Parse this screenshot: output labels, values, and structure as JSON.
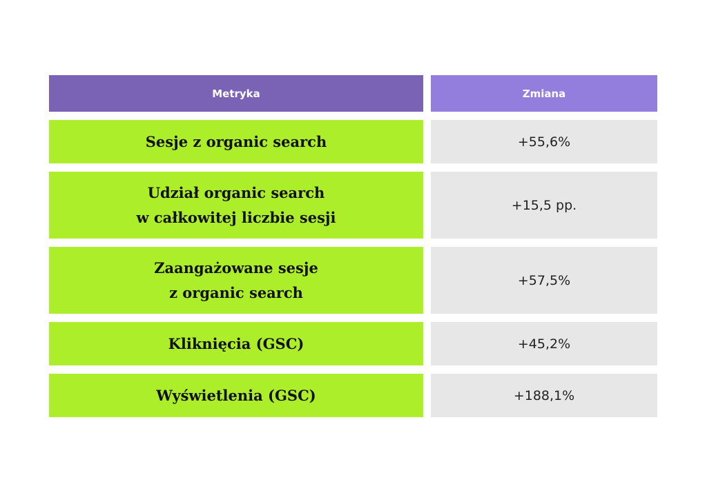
{
  "table": {
    "headers": [
      "Metryka",
      "Zmiana"
    ],
    "rows": [
      {
        "metric": "Sesje z organic search",
        "change": "+55,6%"
      },
      {
        "metric": "Udział organic search\nw całkowitej liczbie sesji",
        "change": "+15,5 pp."
      },
      {
        "metric": "Zaangażowane sesje\nz organic search",
        "change": "+57,5%"
      },
      {
        "metric": "Kliknięcia (GSC)",
        "change": "+45,2%"
      },
      {
        "metric": "Wyświetlenia (GSC)",
        "change": "+188,1%"
      }
    ],
    "colors": {
      "header_left": "#7a62b4",
      "header_right": "#937ddd",
      "metric_bg": "#acee2a",
      "value_bg": "#e7e7e7"
    }
  }
}
